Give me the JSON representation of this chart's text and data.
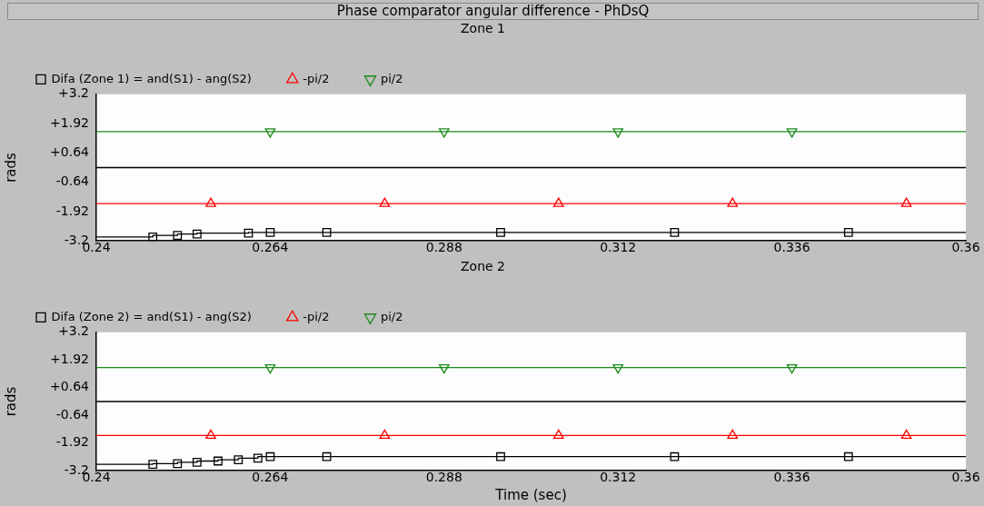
{
  "chart_data": [
    {
      "type": "line",
      "title": "Phase comparator angular difference - PhDsQ",
      "subtitle": "Zone 1",
      "ylabel": "rads",
      "legend": "top",
      "grid": false,
      "xlim": [
        0.24,
        0.36
      ],
      "xticks": [
        0.24,
        0.264,
        0.288,
        0.312,
        0.336,
        0.36
      ],
      "ylim": [
        -3.2,
        3.2
      ],
      "yticks": [
        {
          "value": -3.2,
          "label": "-3.2"
        },
        {
          "value": -1.92,
          "label": "-1.92"
        },
        {
          "value": -0.64,
          "label": "-0.64"
        },
        {
          "value": 0.64,
          "label": "+0.64"
        },
        {
          "value": 1.92,
          "label": "+1.92"
        },
        {
          "value": 3.2,
          "label": "+3.2"
        }
      ],
      "ref_lines": [
        {
          "axis": "y",
          "value": 0,
          "color": "#000000"
        }
      ],
      "series": [
        {
          "name": "Difa (Zone 1) = and(S1) - ang(S2)",
          "type": "step",
          "color": "#000000",
          "marker": "square",
          "x": [
            0.24,
            0.2478,
            0.2512,
            0.2539,
            0.261,
            0.264,
            0.2718,
            0.2958,
            0.3198,
            0.3438,
            0.36
          ],
          "values": [
            -3.03,
            -3.03,
            -2.96,
            -2.9,
            -2.86,
            -2.83,
            -2.83,
            -2.83,
            -2.83,
            -2.83,
            -2.83
          ]
        },
        {
          "name": "-pi/2",
          "type": "line",
          "color": "#ff0000",
          "marker": "triangle",
          "x": [
            0.24,
            0.2558,
            0.2798,
            0.3038,
            0.3278,
            0.3518,
            0.36
          ],
          "values": [
            -1.57,
            -1.57,
            -1.57,
            -1.57,
            -1.57,
            -1.57,
            -1.57
          ]
        },
        {
          "name": "pi/2",
          "type": "line",
          "color": "#1a8a1a",
          "marker": "triangle-down",
          "x": [
            0.24,
            0.264,
            0.288,
            0.312,
            0.336,
            0.36
          ],
          "values": [
            1.57,
            1.57,
            1.57,
            1.57,
            1.57,
            1.57
          ]
        }
      ]
    },
    {
      "type": "line",
      "subtitle": "Zone 2",
      "ylabel": "rads",
      "xlabel": "Time (sec)",
      "legend": "top",
      "grid": false,
      "xlim": [
        0.24,
        0.36
      ],
      "xticks": [
        0.24,
        0.264,
        0.288,
        0.312,
        0.336,
        0.36
      ],
      "ylim": [
        -3.2,
        3.2
      ],
      "yticks": [
        {
          "value": -3.2,
          "label": "-3.2"
        },
        {
          "value": -1.92,
          "label": "-1.92"
        },
        {
          "value": -0.64,
          "label": "-0.64"
        },
        {
          "value": 0.64,
          "label": "+0.64"
        },
        {
          "value": 1.92,
          "label": "+1.92"
        },
        {
          "value": 3.2,
          "label": "+3.2"
        }
      ],
      "ref_lines": [
        {
          "axis": "y",
          "value": 0,
          "color": "#000000"
        }
      ],
      "series": [
        {
          "name": "Difa (Zone 2) = and(S1) - ang(S2)",
          "type": "step",
          "color": "#000000",
          "marker": "square",
          "x": [
            0.24,
            0.2478,
            0.2512,
            0.2539,
            0.2568,
            0.2596,
            0.2623,
            0.264,
            0.2718,
            0.2958,
            0.3198,
            0.3438,
            0.36
          ],
          "values": [
            -2.9,
            -2.9,
            -2.87,
            -2.81,
            -2.75,
            -2.69,
            -2.62,
            -2.55,
            -2.55,
            -2.55,
            -2.55,
            -2.55,
            -2.55
          ]
        },
        {
          "name": "-pi/2",
          "type": "line",
          "color": "#ff0000",
          "marker": "triangle",
          "x": [
            0.24,
            0.2558,
            0.2798,
            0.3038,
            0.3278,
            0.3518,
            0.36
          ],
          "values": [
            -1.57,
            -1.57,
            -1.57,
            -1.57,
            -1.57,
            -1.57,
            -1.57
          ]
        },
        {
          "name": "pi/2",
          "type": "line",
          "color": "#1a8a1a",
          "marker": "triangle-down",
          "x": [
            0.24,
            0.264,
            0.288,
            0.312,
            0.336,
            0.36
          ],
          "values": [
            1.57,
            1.57,
            1.57,
            1.57,
            1.57,
            1.57
          ]
        }
      ]
    }
  ]
}
